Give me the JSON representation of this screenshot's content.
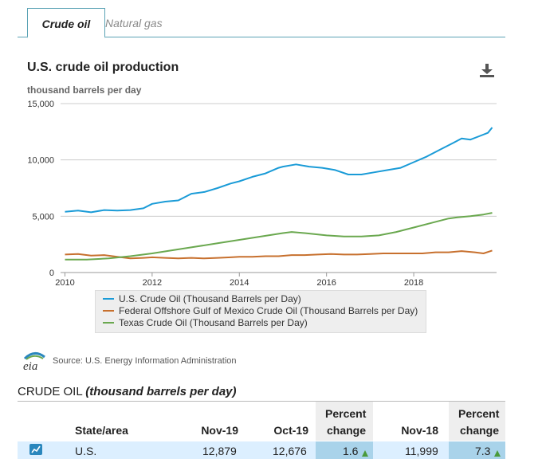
{
  "tabs": [
    {
      "label": "Crude oil",
      "active": true
    },
    {
      "label": "Natural gas",
      "active": false
    }
  ],
  "chart_title": "U.S. crude oil production",
  "units_label": "thousand barrels per day",
  "download_icon": "download-icon",
  "source_text": "Source: U.S. Energy Information Administration",
  "logo_text": "eia",
  "chart_data": {
    "type": "line",
    "title": "U.S. crude oil production",
    "ylabel": "thousand barrels per day",
    "ylim": [
      0,
      15000
    ],
    "yticks": [
      0,
      5000,
      10000,
      15000
    ],
    "ytick_labels": [
      "0",
      "5,000",
      "10,000",
      "15,000"
    ],
    "xlim": [
      2009.9,
      2019.9
    ],
    "xticks": [
      2010,
      2012,
      2014,
      2016,
      2018
    ],
    "xtick_labels": [
      "2010",
      "2012",
      "2014",
      "2016",
      "2018"
    ],
    "grid": true,
    "legend_position": "bottom",
    "series": [
      {
        "name": "U.S. Crude Oil (Thousand Barrels per Day)",
        "color": "#1a9bd7",
        "points": [
          [
            2010.0,
            5400
          ],
          [
            2010.3,
            5500
          ],
          [
            2010.6,
            5350
          ],
          [
            2010.9,
            5550
          ],
          [
            2011.2,
            5500
          ],
          [
            2011.5,
            5550
          ],
          [
            2011.8,
            5700
          ],
          [
            2012.0,
            6100
          ],
          [
            2012.3,
            6300
          ],
          [
            2012.6,
            6400
          ],
          [
            2012.9,
            7000
          ],
          [
            2013.2,
            7150
          ],
          [
            2013.5,
            7500
          ],
          [
            2013.8,
            7900
          ],
          [
            2014.0,
            8100
          ],
          [
            2014.3,
            8500
          ],
          [
            2014.6,
            8800
          ],
          [
            2014.9,
            9300
          ],
          [
            2015.0,
            9400
          ],
          [
            2015.3,
            9600
          ],
          [
            2015.6,
            9400
          ],
          [
            2015.9,
            9300
          ],
          [
            2016.2,
            9100
          ],
          [
            2016.5,
            8700
          ],
          [
            2016.8,
            8700
          ],
          [
            2017.1,
            8900
          ],
          [
            2017.4,
            9100
          ],
          [
            2017.7,
            9300
          ],
          [
            2018.0,
            9800
          ],
          [
            2018.3,
            10300
          ],
          [
            2018.6,
            10900
          ],
          [
            2018.9,
            11500
          ],
          [
            2019.1,
            11900
          ],
          [
            2019.3,
            11800
          ],
          [
            2019.5,
            12100
          ],
          [
            2019.7,
            12400
          ],
          [
            2019.8,
            12879
          ]
        ]
      },
      {
        "name": "Federal Offshore Gulf of Mexico Crude Oil (Thousand Barrels per Day)",
        "color": "#c7702e",
        "points": [
          [
            2010.0,
            1600
          ],
          [
            2010.3,
            1650
          ],
          [
            2010.6,
            1500
          ],
          [
            2010.9,
            1550
          ],
          [
            2011.2,
            1400
          ],
          [
            2011.5,
            1250
          ],
          [
            2011.8,
            1300
          ],
          [
            2012.0,
            1350
          ],
          [
            2012.3,
            1300
          ],
          [
            2012.6,
            1250
          ],
          [
            2012.9,
            1300
          ],
          [
            2013.2,
            1250
          ],
          [
            2013.5,
            1300
          ],
          [
            2013.8,
            1350
          ],
          [
            2014.0,
            1400
          ],
          [
            2014.3,
            1400
          ],
          [
            2014.6,
            1450
          ],
          [
            2014.9,
            1450
          ],
          [
            2015.2,
            1550
          ],
          [
            2015.5,
            1550
          ],
          [
            2015.8,
            1600
          ],
          [
            2016.1,
            1650
          ],
          [
            2016.4,
            1600
          ],
          [
            2016.7,
            1600
          ],
          [
            2017.0,
            1650
          ],
          [
            2017.3,
            1700
          ],
          [
            2017.6,
            1700
          ],
          [
            2017.9,
            1700
          ],
          [
            2018.2,
            1700
          ],
          [
            2018.5,
            1800
          ],
          [
            2018.8,
            1800
          ],
          [
            2019.1,
            1900
          ],
          [
            2019.4,
            1800
          ],
          [
            2019.6,
            1700
          ],
          [
            2019.8,
            1950
          ]
        ]
      },
      {
        "name": "Texas Crude Oil (Thousand Barrels per Day)",
        "color": "#6aa84f",
        "points": [
          [
            2010.0,
            1150
          ],
          [
            2010.5,
            1150
          ],
          [
            2011.0,
            1250
          ],
          [
            2011.5,
            1450
          ],
          [
            2012.0,
            1700
          ],
          [
            2012.5,
            2000
          ],
          [
            2013.0,
            2300
          ],
          [
            2013.5,
            2600
          ],
          [
            2014.0,
            2900
          ],
          [
            2014.5,
            3200
          ],
          [
            2015.0,
            3500
          ],
          [
            2015.2,
            3600
          ],
          [
            2015.5,
            3500
          ],
          [
            2016.0,
            3300
          ],
          [
            2016.4,
            3200
          ],
          [
            2016.8,
            3200
          ],
          [
            2017.2,
            3300
          ],
          [
            2017.6,
            3600
          ],
          [
            2018.0,
            4000
          ],
          [
            2018.4,
            4400
          ],
          [
            2018.8,
            4800
          ],
          [
            2019.0,
            4900
          ],
          [
            2019.3,
            5000
          ],
          [
            2019.6,
            5150
          ],
          [
            2019.8,
            5300
          ]
        ]
      }
    ]
  },
  "table": {
    "title_main": "CRUDE OIL ",
    "title_italic": "(thousand barrels per day)",
    "columns": {
      "state": "State/area",
      "nov19": "Nov-19",
      "oct19": "Oct-19",
      "pc1_line1": "Percent",
      "pc1_line2": "change",
      "nov18": "Nov-18",
      "pc2_line1": "Percent",
      "pc2_line2": "change"
    },
    "rows": [
      {
        "icon": "line-chart-icon",
        "state": "U.S.",
        "nov19": "12,879",
        "oct19": "12,676",
        "pc1": "1.6",
        "nov18": "11,999",
        "pc2": "7.3"
      }
    ]
  }
}
